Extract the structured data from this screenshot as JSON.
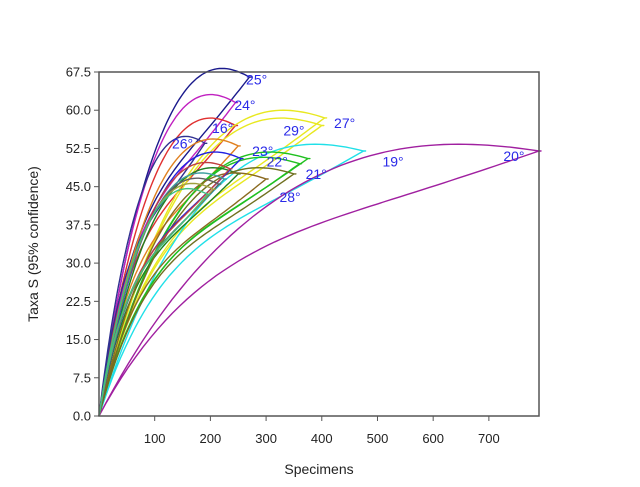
{
  "chart_data": {
    "type": "line",
    "title": "",
    "xlabel": "Specimens",
    "ylabel": "Taxa S (95% confidence)",
    "xlim": [
      0,
      790
    ],
    "ylim": [
      0,
      67.5
    ],
    "x_ticks": [
      100,
      200,
      300,
      400,
      500,
      600,
      700
    ],
    "y_ticks": [
      "0.0",
      "7.5",
      "15.0",
      "22.5",
      "30.0",
      "37.5",
      "45.0",
      "52.5",
      "60.0",
      "67.5"
    ],
    "grid": false,
    "label_color": "#2a2ae8",
    "series": [
      {
        "name": "25°",
        "color": "#1a1a8c",
        "n": 270,
        "s": 66.5,
        "w": 1.6,
        "label_at": [
          283,
          65
        ]
      },
      {
        "name": "24°",
        "color": "#c020c0",
        "n": 245,
        "s": 61.5,
        "w": 1.8,
        "label_at": [
          262,
          60
        ]
      },
      {
        "name": "16°",
        "color": "#e03030",
        "n": 245,
        "s": 57,
        "w": 1.9,
        "label_at": [
          222,
          55.5
        ]
      },
      {
        "name": "29°",
        "color": "#e8e820",
        "n": 405,
        "s": 58.5,
        "w": 2.0,
        "label_at": [
          350,
          55
        ]
      },
      {
        "name": "27°",
        "color": "#e8e820",
        "n": 400,
        "s": 57,
        "w": 1.9,
        "label_at": [
          441,
          56.5
        ]
      },
      {
        "name": "26°",
        "color": "#303090",
        "n": 190,
        "s": 53.5,
        "w": 1.7,
        "label_at": [
          150,
          52.5
        ]
      },
      {
        "name": "23°",
        "color": "#e08020",
        "n": 250,
        "s": 53,
        "w": 1.9,
        "label_at": [
          294,
          51
        ]
      },
      {
        "name": "19°",
        "color": "#20e0e8",
        "n": 475,
        "s": 52,
        "w": 2.1,
        "label_at": [
          528,
          49
        ]
      },
      {
        "name": "22°",
        "color": "#20c020",
        "n": 375,
        "s": 50.5,
        "w": 2.0,
        "label_at": [
          320,
          49
        ]
      },
      {
        "name": "21°",
        "color": "#20c020",
        "n": 360,
        "s": 49.5,
        "w": 2.0,
        "label_at": [
          390,
          46.5
        ]
      },
      {
        "name": "20°",
        "color": "#a020a0",
        "n": 790,
        "s": 52,
        "w": 2.5,
        "label_at": [
          745,
          50
        ]
      },
      {
        "name": "",
        "color": "#208020",
        "n": 250,
        "s": 47.5,
        "w": 1.9,
        "label_at": null
      },
      {
        "name": "",
        "color": "#8a6a20",
        "n": 300,
        "s": 46.5,
        "w": 2.0,
        "label_at": null
      },
      {
        "name": "28°",
        "color": "#707020",
        "n": 350,
        "s": 47.5,
        "w": 2.0,
        "label_at": [
          343,
          42
        ]
      },
      {
        "name": "",
        "color": "#2020e0",
        "n": 255,
        "s": 50.5,
        "w": 1.9,
        "label_at": null
      },
      {
        "name": "",
        "color": "#c04040",
        "n": 235,
        "s": 48.5,
        "w": 1.9,
        "label_at": null
      },
      {
        "name": "",
        "color": "#40a0a0",
        "n": 225,
        "s": 46.5,
        "w": 1.8,
        "label_at": null
      },
      {
        "name": "",
        "color": "#606060",
        "n": 215,
        "s": 45.5,
        "w": 1.8,
        "label_at": null
      },
      {
        "name": "",
        "color": "#a0a040",
        "n": 205,
        "s": 44.5,
        "w": 1.8,
        "label_at": null
      },
      {
        "name": "",
        "color": "#40c080",
        "n": 195,
        "s": 43.5,
        "w": 1.8,
        "label_at": null
      }
    ]
  }
}
